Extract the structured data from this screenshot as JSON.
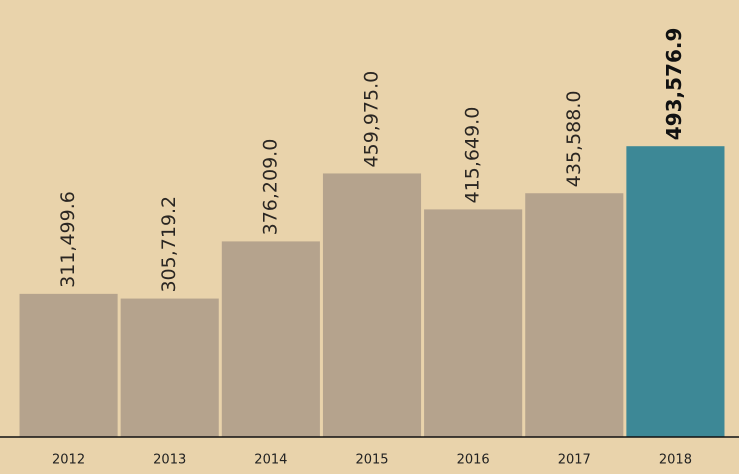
{
  "chart_data": {
    "type": "bar",
    "categories": [
      "2012",
      "2013",
      "2014",
      "2015",
      "2016",
      "2017",
      "2018"
    ],
    "values": [
      311499.6,
      305719.2,
      376209.0,
      459975.0,
      415649.0,
      435588.0,
      493576.9
    ],
    "value_labels": [
      "311,499.6",
      "305,719.2",
      "376,209.0",
      "459,975.0",
      "415,649.0",
      "435,588.0",
      "493,576.9"
    ],
    "colors": [
      "#b5a38d",
      "#b5a38d",
      "#b5a38d",
      "#b5a38d",
      "#b5a38d",
      "#b5a38d",
      "#3d8896"
    ],
    "ylim": [
      135000,
      500000
    ]
  }
}
